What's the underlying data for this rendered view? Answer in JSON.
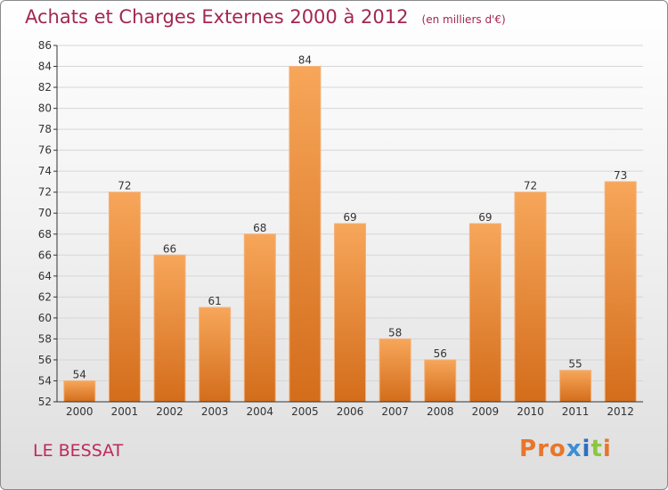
{
  "header": {
    "title": "Achats et Charges Externes 2000 à 2012",
    "unit": "(en milliers d'€)"
  },
  "footer": {
    "commune": "LE BESSAT",
    "logo_text": "Proxiti",
    "logo_colors": [
      "#e8762b",
      "#e8762b",
      "#e8762b",
      "#3a8fd6",
      "#2f6fbf",
      "#8cc63f",
      "#e8762b"
    ]
  },
  "colors": {
    "bar_light": "#f7a65a",
    "bar_dark": "#d36d1b",
    "axis": "#333333",
    "grid": "#d6d6d6"
  },
  "chart_data": {
    "type": "bar",
    "categories": [
      "2000",
      "2001",
      "2002",
      "2003",
      "2004",
      "2005",
      "2006",
      "2007",
      "2008",
      "2009",
      "2010",
      "2011",
      "2012"
    ],
    "values": [
      54,
      72,
      66,
      61,
      68,
      84,
      69,
      58,
      56,
      69,
      72,
      55,
      73
    ],
    "title": "Achats et Charges Externes 2000 à 2012",
    "ylim": [
      52,
      86
    ],
    "yticks": [
      52,
      54,
      56,
      58,
      60,
      62,
      64,
      66,
      68,
      70,
      72,
      74,
      76,
      78,
      80,
      82,
      84,
      86
    ],
    "grid": true,
    "data_labels": true
  }
}
